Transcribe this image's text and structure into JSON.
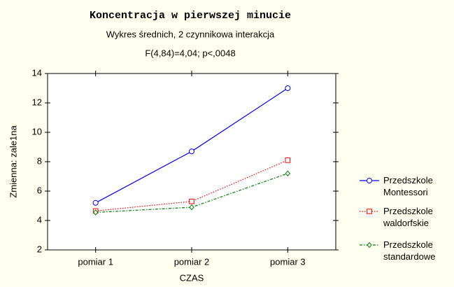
{
  "chart_data": {
    "type": "line",
    "title": "Koncentracja w pierwszej minucie",
    "subtitle": "Wykres średnich, 2 czynnikowa interakcja",
    "annotation": "F(4,84)=4,04; p<,0048",
    "x_label": "CZAS",
    "y_label": "Zmienna: zale1na",
    "categories": [
      "pomiar 1",
      "pomiar 2",
      "pomiar 3"
    ],
    "series": [
      {
        "name": "Przedszkole Montessori",
        "color": "#0000ff",
        "marker": "circle",
        "dash": "solid",
        "values": [
          5.2,
          8.7,
          13.0
        ]
      },
      {
        "name": "Przedszkole waldorfskie",
        "color": "#ff0000",
        "marker": "square",
        "dash": "dotted",
        "values": [
          4.65,
          5.3,
          8.1
        ]
      },
      {
        "name": "Przedszkole standardowe",
        "color": "#008000",
        "marker": "diamond",
        "dash": "dashdot",
        "values": [
          4.55,
          4.9,
          7.2
        ]
      }
    ],
    "ylim": [
      2,
      14
    ],
    "yticks": [
      2,
      4,
      6,
      8,
      10,
      12,
      14
    ],
    "grid": false,
    "legend": "right"
  }
}
